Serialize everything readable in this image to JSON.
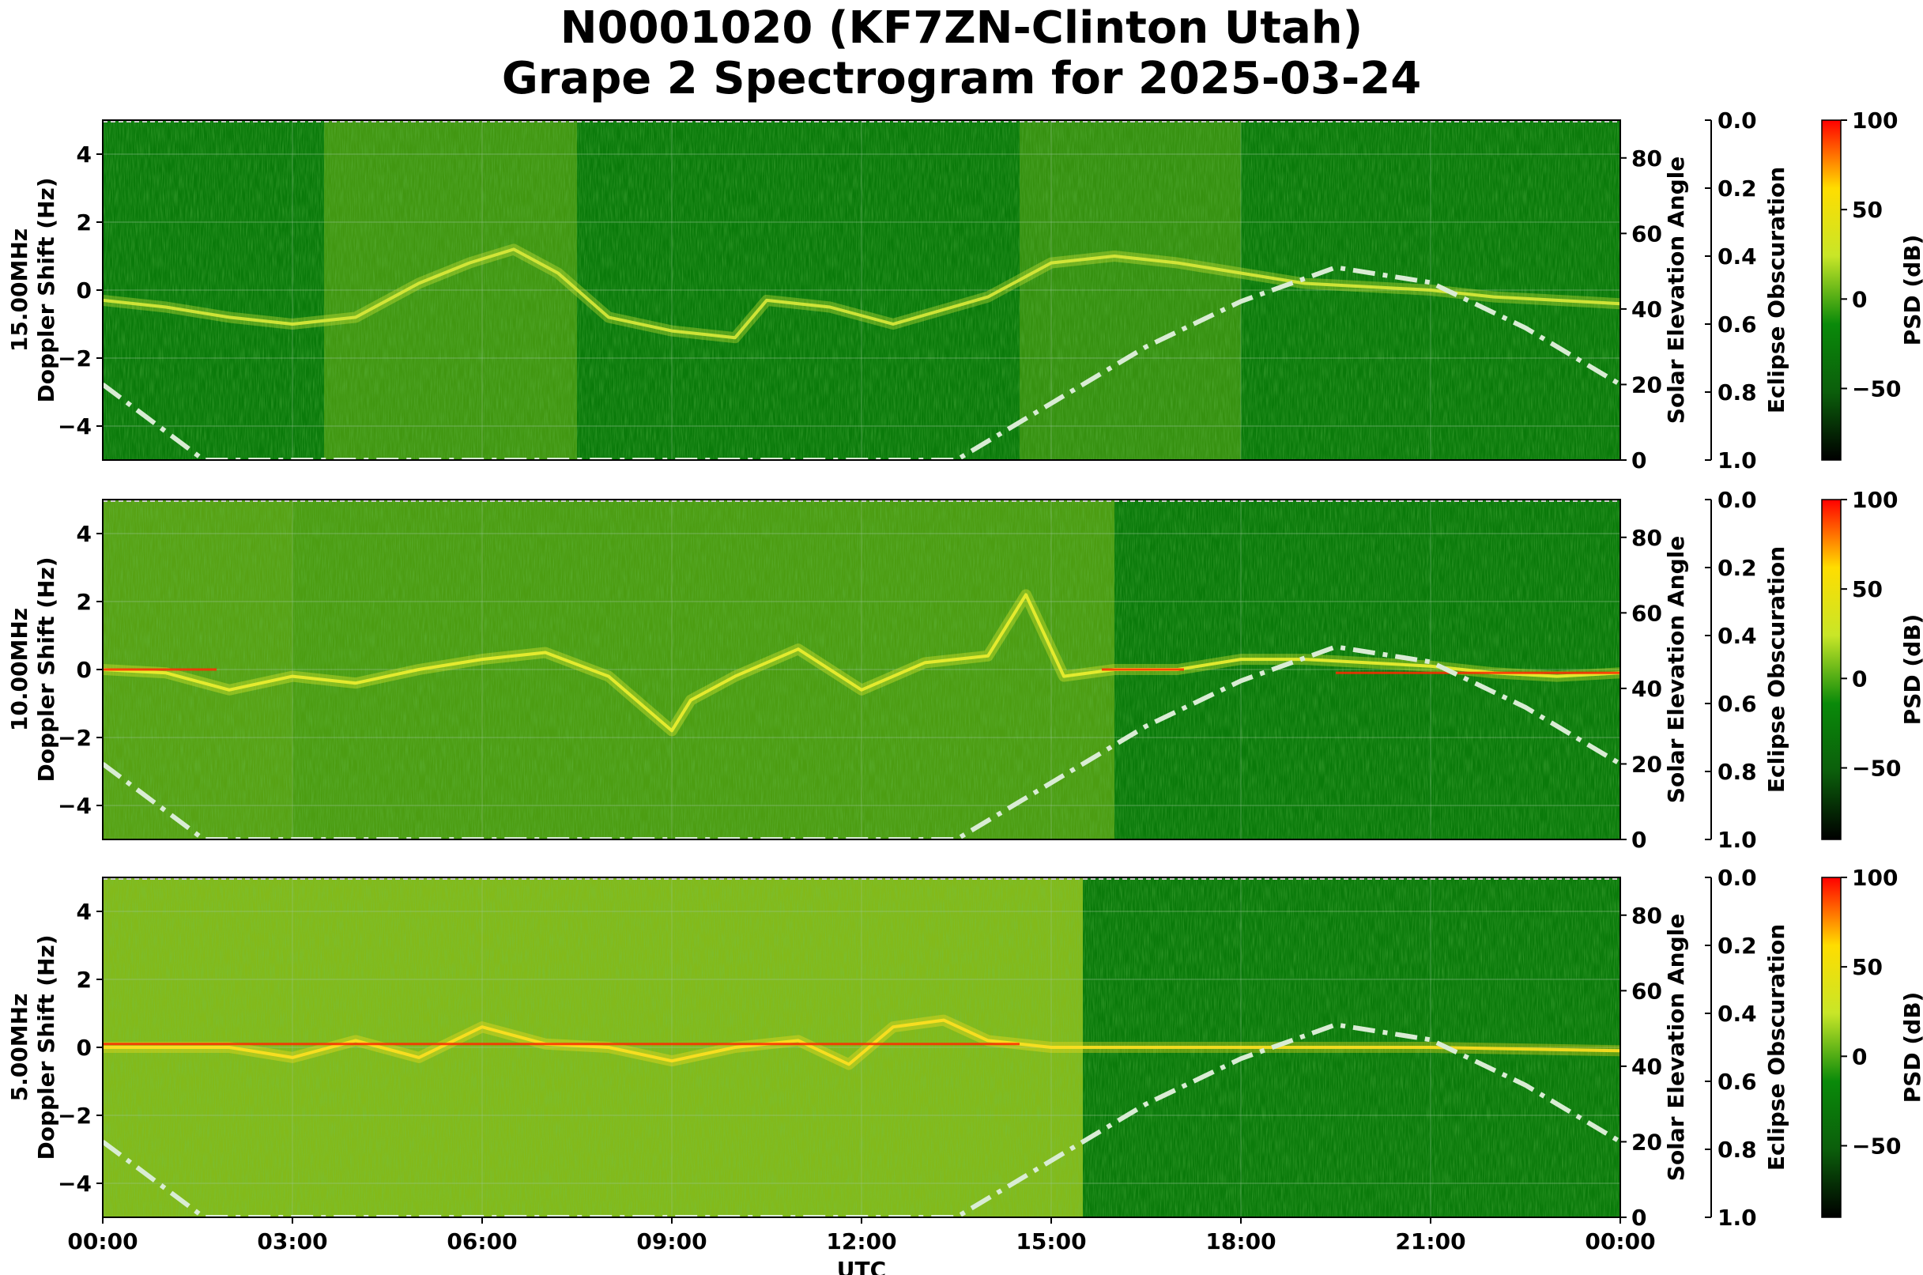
{
  "title_line1": "N0001020 (KF7ZN-Clinton Utah)",
  "title_line2": "Grape 2 Spectrogram for 2025-03-24",
  "colors": {
    "background_green": "#0a7a0a",
    "signal_yellow": "#e8ee28",
    "signal_red": "#ff2a00",
    "solar_curve": "#d9ecd4"
  },
  "chart_data": {
    "type": "heatmap",
    "xlabel": "UTC",
    "x_ticks": [
      "00:00",
      "03:00",
      "06:00",
      "09:00",
      "12:00",
      "15:00",
      "18:00",
      "21:00",
      "00:00"
    ],
    "x_range_hours": [
      0,
      24
    ],
    "colorbar": {
      "label": "PSD (dB)",
      "ticks": [
        -50,
        0,
        50,
        100
      ],
      "range": [
        -90,
        100
      ],
      "colormap": [
        "#000000",
        "#0b5e0b",
        "#0a8a0a",
        "#c8e628",
        "#ffdd00",
        "#ff0000"
      ]
    },
    "panels": [
      {
        "name": "15.00MHz",
        "ylabel_line1": "15.00MHz",
        "ylabel_line2": "Doppler Shift (Hz)",
        "y_range": [
          -5,
          5
        ],
        "y_ticks": [
          4,
          2,
          0,
          -2,
          -4
        ],
        "right_label": "Solar Elevation Angle",
        "right_ticks": [
          80,
          60,
          40,
          20,
          0
        ],
        "eclipse_label": "Eclipse Obscuration",
        "eclipse_ticks": [
          "0.0",
          "0.2",
          "0.4",
          "0.6",
          "0.8",
          "1.0"
        ],
        "ridge": [
          [
            0,
            -0.3
          ],
          [
            1,
            -0.5
          ],
          [
            2,
            -0.8
          ],
          [
            3,
            -1.0
          ],
          [
            4,
            -0.8
          ],
          [
            5,
            0.2
          ],
          [
            5.8,
            0.8
          ],
          [
            6.5,
            1.2
          ],
          [
            7.2,
            0.5
          ],
          [
            8,
            -0.8
          ],
          [
            9,
            -1.2
          ],
          [
            10,
            -1.4
          ],
          [
            10.5,
            -0.3
          ],
          [
            11.5,
            -0.5
          ],
          [
            12.5,
            -1.0
          ],
          [
            14,
            -0.2
          ],
          [
            15,
            0.8
          ],
          [
            16,
            1.0
          ],
          [
            17,
            0.8
          ],
          [
            18,
            0.5
          ],
          [
            19,
            0.2
          ],
          [
            20,
            0.1
          ],
          [
            21,
            0.0
          ],
          [
            22,
            -0.2
          ],
          [
            23,
            -0.3
          ],
          [
            24,
            -0.4
          ]
        ],
        "ridge_color": "#dcea3a",
        "wash": [
          {
            "from": 3.5,
            "to": 7.5,
            "opacity": 0.25
          },
          {
            "from": 14.5,
            "to": 18,
            "opacity": 0.2
          }
        ],
        "red_segments": []
      },
      {
        "name": "10.00MHz",
        "ylabel_line1": "10.00MHz",
        "ylabel_line2": "Doppler Shift (Hz)",
        "y_range": [
          -5,
          5
        ],
        "y_ticks": [
          4,
          2,
          0,
          -2,
          -4
        ],
        "right_label": "Solar Elevation Angle",
        "right_ticks": [
          80,
          60,
          40,
          20,
          0
        ],
        "eclipse_label": "Eclipse Obscuration",
        "eclipse_ticks": [
          "0.0",
          "0.2",
          "0.4",
          "0.6",
          "0.8",
          "1.0"
        ],
        "ridge": [
          [
            0,
            0.0
          ],
          [
            1,
            -0.1
          ],
          [
            2,
            -0.6
          ],
          [
            3,
            -0.2
          ],
          [
            4,
            -0.4
          ],
          [
            5,
            0.0
          ],
          [
            6,
            0.3
          ],
          [
            7,
            0.5
          ],
          [
            8,
            -0.2
          ],
          [
            9,
            -1.8
          ],
          [
            9.3,
            -0.9
          ],
          [
            10,
            -0.2
          ],
          [
            11,
            0.6
          ],
          [
            12,
            -0.6
          ],
          [
            13,
            0.2
          ],
          [
            14,
            0.4
          ],
          [
            14.6,
            2.2
          ],
          [
            15.2,
            -0.2
          ],
          [
            16,
            0.0
          ],
          [
            17,
            0.0
          ],
          [
            18,
            0.3
          ],
          [
            19,
            0.3
          ],
          [
            20,
            0.2
          ],
          [
            21,
            0.1
          ],
          [
            22,
            -0.1
          ],
          [
            23,
            -0.2
          ],
          [
            24,
            -0.1
          ]
        ],
        "ridge_color": "#eef030",
        "wash": [
          {
            "from": 0,
            "to": 3,
            "opacity": 0.35
          },
          {
            "from": 3,
            "to": 16,
            "opacity": 0.3
          }
        ],
        "red_segments": [
          {
            "from": 0,
            "to": 1.8,
            "y": 0.0
          },
          {
            "from": 15.8,
            "to": 17.1,
            "y": 0.0
          },
          {
            "from": 19.5,
            "to": 24,
            "y": -0.1
          }
        ]
      },
      {
        "name": "5.00MHz",
        "ylabel_line1": "5.00MHz",
        "ylabel_line2": "Doppler Shift (Hz)",
        "y_range": [
          -5,
          5
        ],
        "y_ticks": [
          4,
          2,
          0,
          -2,
          -4
        ],
        "right_label": "Solar Elevation Angle",
        "right_ticks": [
          80,
          60,
          40,
          20,
          0
        ],
        "eclipse_label": "Eclipse Obscuration",
        "eclipse_ticks": [
          "0.0",
          "0.2",
          "0.4",
          "0.6",
          "0.8",
          "1.0"
        ],
        "ridge": [
          [
            0,
            0.0
          ],
          [
            1,
            0.0
          ],
          [
            2,
            0.0
          ],
          [
            3,
            -0.3
          ],
          [
            4,
            0.2
          ],
          [
            5,
            -0.3
          ],
          [
            6,
            0.6
          ],
          [
            7,
            0.1
          ],
          [
            8,
            0.0
          ],
          [
            9,
            -0.4
          ],
          [
            10,
            0.0
          ],
          [
            11,
            0.2
          ],
          [
            11.8,
            -0.5
          ],
          [
            12.5,
            0.6
          ],
          [
            13.3,
            0.8
          ],
          [
            14,
            0.2
          ],
          [
            15,
            0.0
          ],
          [
            18,
            0.0
          ],
          [
            21,
            0.0
          ],
          [
            24,
            -0.1
          ]
        ],
        "ridge_color": "#ffe020",
        "wash": [
          {
            "from": 0,
            "to": 15.5,
            "opacity": 0.55
          }
        ],
        "red_segments": [
          {
            "from": 0,
            "to": 14.5,
            "y": 0.1
          }
        ]
      }
    ],
    "solar_elevation": {
      "style": "dash-dot",
      "points": [
        [
          0,
          20
        ],
        [
          1.6,
          0
        ],
        [
          13.5,
          0
        ],
        [
          15,
          15
        ],
        [
          16.5,
          30
        ],
        [
          18,
          42
        ],
        [
          19.5,
          51
        ],
        [
          21,
          47
        ],
        [
          22.5,
          35
        ],
        [
          24,
          20
        ]
      ]
    }
  }
}
